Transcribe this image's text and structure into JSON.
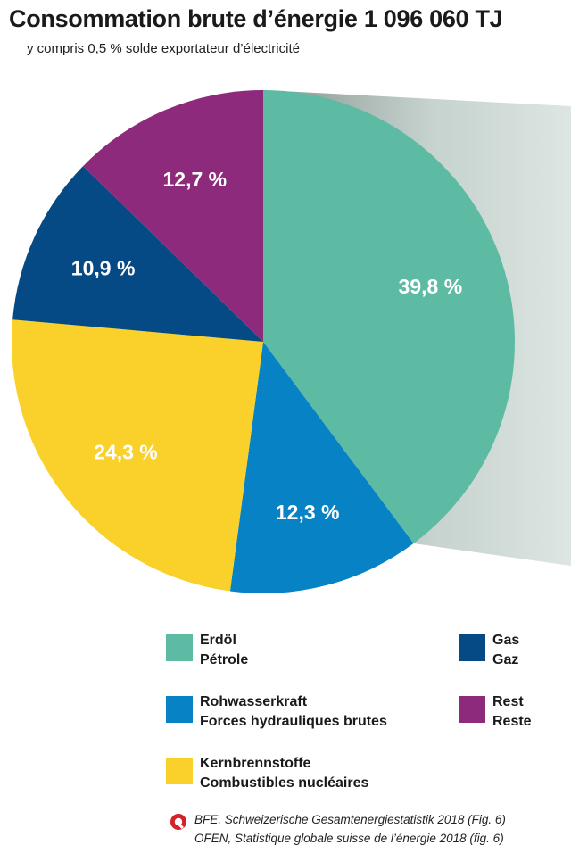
{
  "header": {
    "title": "Consommation brute d’énergie 1 096 060 TJ",
    "subtitle": "y compris 0,5 % solde exportateur d’électricité"
  },
  "chart_data": {
    "type": "pie",
    "title": "Consommation brute d’énergie 1 096 060 TJ",
    "subtitle": "y compris 0,5 % solde exportateur d’électricité",
    "unit": "%",
    "slices": [
      {
        "name_de": "Erdöl",
        "name_fr": "Pétrole",
        "value": 39.8,
        "label": "39,8 %",
        "color": "#5dbba3"
      },
      {
        "name_de": "Rohwasserkraft",
        "name_fr": "Forces hydrauliques brutes",
        "value": 12.3,
        "label": "12,3 %",
        "color": "#0782c4"
      },
      {
        "name_de": "Kernbrennstoffe",
        "name_fr": "Combustibles nucléaires",
        "value": 24.3,
        "label": "24,3 %",
        "color": "#f9d12a"
      },
      {
        "name_de": "Gas",
        "name_fr": "Gaz",
        "value": 10.9,
        "label": "10,9 %",
        "color": "#054a85"
      },
      {
        "name_de": "Rest",
        "name_fr": "Reste",
        "value": 12.7,
        "label": "12,7 %",
        "color": "#8d2a7b"
      }
    ],
    "start_angle": "12 o'clock",
    "direction": "clockwise",
    "legend_placement": "bottom"
  },
  "legend": {
    "items": [
      {
        "line1": "Erdöl",
        "line2": "Pétrole",
        "color": "#5dbba3"
      },
      {
        "line1": "Gas",
        "line2": "Gaz",
        "color": "#054a85"
      },
      {
        "line1": "Rohwasserkraft",
        "line2": "Forces hydrauliques brutes",
        "color": "#0782c4"
      },
      {
        "line1": "Rest",
        "line2": "Reste",
        "color": "#8d2a7b"
      },
      {
        "line1": "Kernbrennstoffe",
        "line2": "Combustibles nucléaires",
        "color": "#f9d12a"
      }
    ]
  },
  "source": {
    "line1": "BFE, Schweizerische Gesamtenergiestatistik 2018 (Fig. 6)",
    "line2": "OFEN, Statistique globale suisse de l’énergie 2018 (fig. 6)",
    "icon": "bfe-logo-icon",
    "icon_color": "#d2232a"
  }
}
